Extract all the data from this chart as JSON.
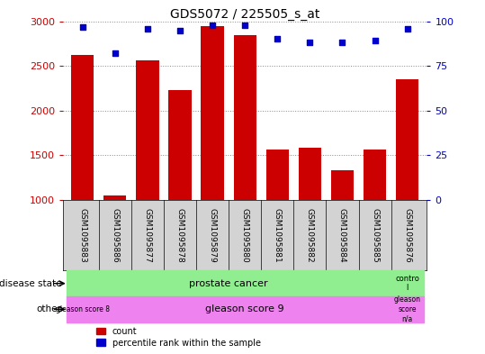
{
  "title": "GDS5072 / 225505_s_at",
  "samples": [
    "GSM1095883",
    "GSM1095886",
    "GSM1095877",
    "GSM1095878",
    "GSM1095879",
    "GSM1095880",
    "GSM1095881",
    "GSM1095882",
    "GSM1095884",
    "GSM1095885",
    "GSM1095876"
  ],
  "counts": [
    2620,
    1050,
    2560,
    2230,
    2950,
    2840,
    1560,
    1580,
    1330,
    1560,
    2350
  ],
  "percentile_ranks": [
    97,
    82,
    96,
    95,
    98,
    98,
    90,
    88,
    88,
    89,
    96
  ],
  "ylim_left": [
    1000,
    3000
  ],
  "ylim_right": [
    0,
    100
  ],
  "yticks_left": [
    1000,
    1500,
    2000,
    2500,
    3000
  ],
  "yticks_right": [
    0,
    25,
    50,
    75,
    100
  ],
  "bar_color": "#cc0000",
  "dot_color": "#0000cc",
  "bar_width": 0.7,
  "disease_state_colors": [
    "#90ee90",
    "#90ee90"
  ],
  "disease_state_texts": [
    "prostate cancer",
    "contro\nl"
  ],
  "other_colors": [
    "#ee82ee",
    "#ee82ee",
    "#ee82ee"
  ],
  "other_texts": [
    "gleason score 8",
    "gleason score 9",
    "gleason\nscore\nn/a"
  ],
  "legend_count_label": "count",
  "legend_pct_label": "percentile rank within the sample",
  "grid_color": "#888888",
  "tick_color_left": "#cc0000",
  "tick_color_right": "#0000cc",
  "bg_color": "#ffffff",
  "label_area_bg": "#d3d3d3",
  "fig_bg": "#ffffff"
}
